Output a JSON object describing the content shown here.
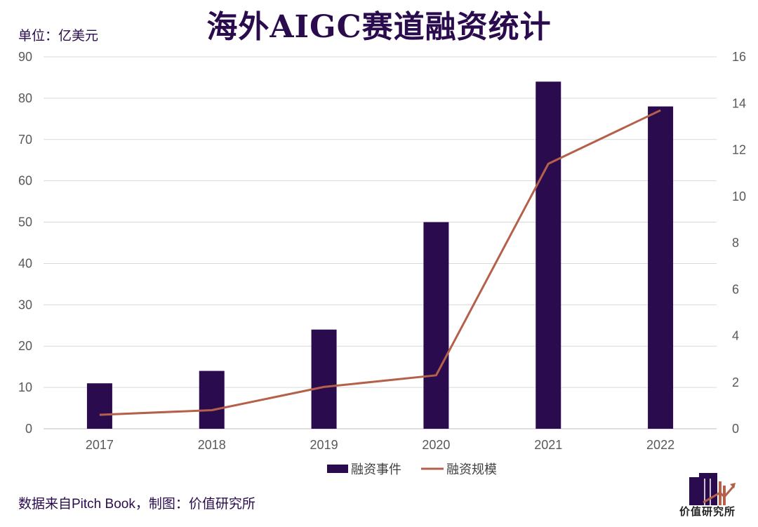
{
  "title": "海外AIGC赛道融资统计",
  "unit_label": "单位：亿美元",
  "source_note": "数据来自Pitch Book，制图：价值研究所",
  "logo_text": "价值研究所",
  "colors": {
    "bar": "#2a0c4e",
    "line": "#b5604a",
    "text": "#2a0c4e",
    "axis_text": "#595959",
    "grid": "#d9d9d9"
  },
  "chart_data": {
    "type": "bar+line",
    "categories": [
      "2017",
      "2018",
      "2019",
      "2020",
      "2021",
      "2022"
    ],
    "series": [
      {
        "name": "融资事件",
        "type": "bar",
        "axis": "left",
        "values": [
          11,
          14,
          24,
          50,
          84,
          78
        ]
      },
      {
        "name": "融资规模",
        "type": "line",
        "axis": "right",
        "values": [
          0.6,
          0.8,
          1.8,
          2.3,
          11.4,
          13.7
        ]
      }
    ],
    "y_left": {
      "min": 0,
      "max": 90,
      "ticks": [
        "0",
        "10",
        "20",
        "30",
        "40",
        "50",
        "60",
        "70",
        "80",
        "90"
      ]
    },
    "y_right": {
      "min": 0,
      "max": 16,
      "ticks": [
        "0",
        "2",
        "4",
        "6",
        "8",
        "10",
        "12",
        "14",
        "16"
      ]
    },
    "legend": {
      "position": "bottom",
      "items": [
        "融资事件",
        "融资规模"
      ]
    },
    "grid": true
  }
}
